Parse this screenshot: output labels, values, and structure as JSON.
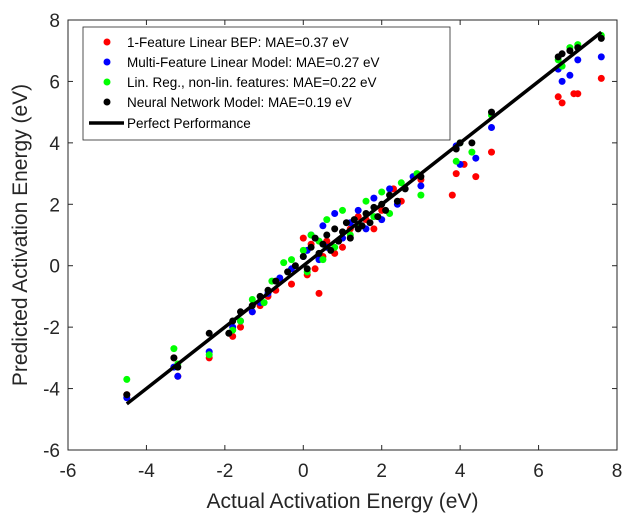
{
  "chart_data": {
    "type": "scatter",
    "xlabel": "Actual Activation Energy (eV)",
    "ylabel": "Predicted Activation Energy (eV)",
    "xlim": [
      -6,
      8
    ],
    "ylim": [
      -6,
      8
    ],
    "xticks": [
      "-6",
      "-4",
      "-2",
      "0",
      "2",
      "4",
      "6",
      "8"
    ],
    "yticks": [
      "-6",
      "-4",
      "-2",
      "0",
      "2",
      "4",
      "6",
      "8"
    ],
    "grid": false,
    "legend_position": "top-left",
    "series": [
      {
        "name": "1-Feature Linear BEP: MAE=0.37 eV",
        "color": "#ff0000",
        "x": [
          -4.5,
          -3.3,
          -3.2,
          -2.4,
          -1.8,
          -1.6,
          -1.3,
          -1.1,
          -0.9,
          -0.7,
          -0.6,
          -0.3,
          0.0,
          0.1,
          0.2,
          0.3,
          0.4,
          0.5,
          0.6,
          0.8,
          1.0,
          1.2,
          1.4,
          1.6,
          1.8,
          2.0,
          2.3,
          2.5,
          3.0,
          3.8,
          3.9,
          4.1,
          4.4,
          4.8,
          6.5,
          6.6,
          6.9,
          7.0,
          7.6
        ],
        "y": [
          -4.2,
          -3.0,
          -3.6,
          -3.0,
          -2.3,
          -2.0,
          -1.5,
          -1.3,
          -1.0,
          -0.8,
          -0.5,
          -0.6,
          0.9,
          -0.3,
          0.7,
          -0.1,
          -0.9,
          0.3,
          0.8,
          0.4,
          0.6,
          1.2,
          1.6,
          1.5,
          1.2,
          1.8,
          2.5,
          2.1,
          2.8,
          2.3,
          3.0,
          3.3,
          2.9,
          3.7,
          5.5,
          5.3,
          5.6,
          5.6,
          6.1
        ]
      },
      {
        "name": "Multi-Feature Linear Model: MAE=0.27 eV",
        "color": "#0000ff",
        "x": [
          -4.5,
          -3.3,
          -3.2,
          -2.4,
          -1.8,
          -1.6,
          -1.3,
          -1.1,
          -0.9,
          -0.6,
          -0.3,
          0.0,
          0.1,
          0.2,
          0.4,
          0.5,
          0.6,
          0.8,
          1.0,
          1.2,
          1.4,
          1.6,
          1.8,
          2.0,
          2.2,
          2.4,
          2.8,
          3.0,
          3.9,
          4.0,
          4.4,
          4.8,
          6.5,
          6.6,
          6.8,
          7.0,
          7.6
        ],
        "y": [
          -4.3,
          -3.3,
          -3.6,
          -2.8,
          -2.0,
          -1.8,
          -1.5,
          -1.2,
          -0.9,
          -0.4,
          -0.1,
          0.3,
          0.5,
          1.0,
          0.2,
          1.3,
          0.6,
          1.7,
          0.9,
          1.4,
          1.8,
          1.2,
          2.2,
          1.5,
          2.5,
          2.0,
          2.9,
          2.6,
          3.9,
          3.3,
          3.5,
          4.5,
          6.4,
          6.0,
          6.2,
          6.7,
          6.8
        ]
      },
      {
        "name": "Lin. Reg., non-lin. features: MAE=0.22 eV",
        "color": "#00ff00",
        "x": [
          -4.5,
          -3.3,
          -3.2,
          -2.4,
          -1.8,
          -1.6,
          -1.3,
          -1.0,
          -0.8,
          -0.5,
          -0.3,
          0.0,
          0.1,
          0.2,
          0.4,
          0.5,
          0.6,
          0.8,
          1.0,
          1.2,
          1.4,
          1.6,
          1.8,
          2.0,
          2.2,
          2.5,
          2.9,
          3.0,
          3.9,
          4.0,
          4.3,
          4.8,
          6.5,
          6.6,
          6.8,
          7.0,
          7.6
        ],
        "y": [
          -3.7,
          -2.7,
          -3.2,
          -2.9,
          -2.1,
          -1.8,
          -1.1,
          -1.2,
          -0.5,
          0.1,
          0.2,
          0.5,
          -0.2,
          1.0,
          0.8,
          0.2,
          1.5,
          0.6,
          1.8,
          1.0,
          1.3,
          2.1,
          1.6,
          2.4,
          1.7,
          2.7,
          3.0,
          2.3,
          3.4,
          4.0,
          3.7,
          4.9,
          6.7,
          6.5,
          7.1,
          7.2,
          7.5
        ]
      },
      {
        "name": "Neural Network Model: MAE=0.19 eV",
        "color": "#000000",
        "x": [
          -4.5,
          -3.3,
          -3.2,
          -2.4,
          -1.9,
          -1.8,
          -1.6,
          -1.3,
          -1.1,
          -0.9,
          -0.7,
          -0.4,
          -0.2,
          0.0,
          0.1,
          0.2,
          0.3,
          0.4,
          0.5,
          0.6,
          0.7,
          0.8,
          0.9,
          1.0,
          1.1,
          1.2,
          1.3,
          1.4,
          1.5,
          1.6,
          1.7,
          1.8,
          1.9,
          2.0,
          2.1,
          2.2,
          2.4,
          2.6,
          3.0,
          3.9,
          4.0,
          4.3,
          4.8,
          6.5,
          6.6,
          6.8,
          7.0,
          7.6
        ],
        "y": [
          -4.2,
          -3.0,
          -3.3,
          -2.2,
          -2.2,
          -1.8,
          -1.5,
          -1.3,
          -1.0,
          -0.8,
          -0.5,
          -0.2,
          0.0,
          0.3,
          -0.1,
          0.6,
          0.9,
          0.4,
          0.7,
          1.0,
          0.5,
          1.2,
          0.8,
          1.1,
          1.4,
          0.9,
          1.5,
          1.2,
          1.3,
          1.7,
          1.4,
          1.9,
          1.6,
          2.0,
          1.8,
          2.3,
          2.1,
          2.5,
          2.9,
          3.8,
          4.0,
          4.0,
          5.0,
          6.8,
          6.9,
          7.0,
          7.1,
          7.4
        ]
      }
    ],
    "line": {
      "name": "Perfect Performance",
      "color": "#000000",
      "x": [
        -4.5,
        7.6
      ],
      "y": [
        -4.5,
        7.6
      ]
    }
  }
}
